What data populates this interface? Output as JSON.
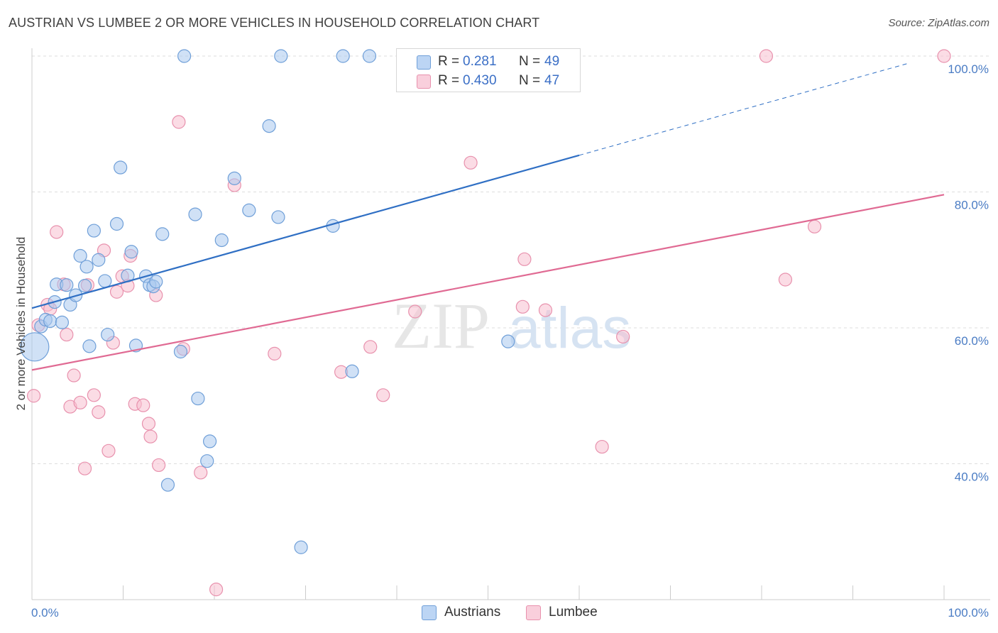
{
  "title": "AUSTRIAN VS LUMBEE 2 OR MORE VEHICLES IN HOUSEHOLD CORRELATION CHART",
  "source": "Source: ZipAtlas.com",
  "watermark": {
    "zip": "ZIP",
    "atlas": "atlas"
  },
  "legend": {
    "rows": [
      {
        "r_label": "R =",
        "r_value": "0.281",
        "n_label": "N =",
        "n_value": "49"
      },
      {
        "r_label": "R =",
        "r_value": "0.430",
        "n_label": "N =",
        "n_value": "47"
      }
    ]
  },
  "bottom_legend": {
    "austrians": "Austrians",
    "lumbee": "Lumbee"
  },
  "colors": {
    "austrians_fill": "#a9c8ef",
    "austrians_stroke": "#6f9fd8",
    "austrians_line": "#2f6fc4",
    "lumbee_fill": "#f7bfd0",
    "lumbee_stroke": "#e891ad",
    "lumbee_line": "#e06a93",
    "tick_label": "#4a7cc4",
    "grid": "#dddddd"
  },
  "chart_data": {
    "type": "scatter",
    "title": "AUSTRIAN VS LUMBEE 2 OR MORE VEHICLES IN HOUSEHOLD CORRELATION CHART",
    "xlabel": "",
    "ylabel": "2 or more Vehicles in Household",
    "xlim": [
      0,
      100
    ],
    "ylim": [
      20,
      100
    ],
    "x_ticks": [
      "0.0%",
      "100.0%"
    ],
    "y_ticks": [
      {
        "value": 40,
        "label": "40.0%"
      },
      {
        "value": 60,
        "label": "60.0%"
      },
      {
        "value": 80,
        "label": "80.0%"
      },
      {
        "value": 100,
        "label": "100.0%"
      }
    ],
    "grid": true,
    "legend_placement": "top-center",
    "series": [
      {
        "name": "Austrians",
        "r": 0.281,
        "n": 49,
        "trend": {
          "x0": 0,
          "y0": 62.9,
          "x1": 100,
          "y1": 100.4,
          "solid_until_x": 60
        },
        "points": [
          [
            0.3,
            57.2,
            20
          ],
          [
            1.0,
            60.2,
            9
          ],
          [
            1.5,
            61.2,
            9
          ],
          [
            2.0,
            61.0,
            9
          ],
          [
            2.5,
            63.8,
            9
          ],
          [
            2.7,
            66.4,
            9
          ],
          [
            3.3,
            60.8,
            9
          ],
          [
            3.8,
            66.3,
            9
          ],
          [
            4.2,
            63.4,
            9
          ],
          [
            4.8,
            64.8,
            9
          ],
          [
            5.3,
            70.6,
            9
          ],
          [
            5.8,
            66.2,
            9
          ],
          [
            6.0,
            69.0,
            9
          ],
          [
            6.3,
            57.3,
            9
          ],
          [
            6.8,
            74.3,
            9
          ],
          [
            7.3,
            70.0,
            9
          ],
          [
            8.0,
            66.9,
            9
          ],
          [
            8.3,
            59.0,
            9
          ],
          [
            9.3,
            75.3,
            9
          ],
          [
            9.7,
            83.6,
            9
          ],
          [
            10.9,
            71.2,
            9
          ],
          [
            10.5,
            67.7,
            9
          ],
          [
            11.4,
            57.4,
            9
          ],
          [
            12.5,
            67.6,
            9
          ],
          [
            12.9,
            66.3,
            9
          ],
          [
            13.3,
            66.1,
            9
          ],
          [
            13.6,
            66.8,
            9
          ],
          [
            14.3,
            73.8,
            9
          ],
          [
            14.9,
            36.9,
            9
          ],
          [
            16.3,
            56.5,
            9
          ],
          [
            16.7,
            100.0,
            9
          ],
          [
            17.9,
            76.7,
            9
          ],
          [
            18.2,
            49.6,
            9
          ],
          [
            19.2,
            40.4,
            9
          ],
          [
            19.5,
            43.3,
            9
          ],
          [
            20.8,
            72.9,
            9
          ],
          [
            22.2,
            82.0,
            9
          ],
          [
            23.8,
            77.3,
            9
          ],
          [
            26.0,
            89.7,
            9
          ],
          [
            27.0,
            76.3,
            9
          ],
          [
            27.3,
            100.0,
            9
          ],
          [
            29.5,
            27.7,
            9
          ],
          [
            33.0,
            75.0,
            9
          ],
          [
            34.1,
            100.0,
            9
          ],
          [
            35.1,
            53.6,
            9
          ],
          [
            37.0,
            100.0,
            9
          ],
          [
            41.5,
            100.0,
            9
          ],
          [
            52.2,
            58.0,
            9
          ],
          [
            58.0,
            100.0,
            9
          ]
        ]
      },
      {
        "name": "Lumbee",
        "r": 0.43,
        "n": 47,
        "trend": {
          "x0": 0,
          "y0": 53.8,
          "x1": 100,
          "y1": 79.6,
          "solid_until_x": 100
        },
        "points": [
          [
            0.2,
            50.0,
            9
          ],
          [
            0.7,
            60.4,
            9
          ],
          [
            1.7,
            63.4,
            9
          ],
          [
            2.0,
            62.8,
            9
          ],
          [
            2.7,
            74.1,
            9
          ],
          [
            3.5,
            66.4,
            9
          ],
          [
            3.8,
            59.0,
            9
          ],
          [
            4.2,
            48.4,
            9
          ],
          [
            4.6,
            53.0,
            9
          ],
          [
            5.3,
            49.0,
            9
          ],
          [
            5.8,
            39.3,
            9
          ],
          [
            6.1,
            66.3,
            9
          ],
          [
            6.8,
            50.1,
            9
          ],
          [
            7.3,
            47.6,
            9
          ],
          [
            7.9,
            71.4,
            9
          ],
          [
            8.4,
            41.9,
            9
          ],
          [
            8.9,
            57.8,
            9
          ],
          [
            9.3,
            65.3,
            9
          ],
          [
            9.9,
            67.6,
            9
          ],
          [
            10.5,
            66.2,
            9
          ],
          [
            10.8,
            70.6,
            9
          ],
          [
            11.3,
            48.8,
            9
          ],
          [
            12.2,
            48.6,
            9
          ],
          [
            12.8,
            45.9,
            9
          ],
          [
            13.0,
            44.0,
            9
          ],
          [
            13.6,
            64.8,
            9
          ],
          [
            13.9,
            39.8,
            9
          ],
          [
            16.1,
            90.3,
            9
          ],
          [
            16.6,
            56.9,
            9
          ],
          [
            18.5,
            38.7,
            9
          ],
          [
            20.2,
            21.5,
            9
          ],
          [
            22.2,
            81.0,
            9
          ],
          [
            26.6,
            56.2,
            9
          ],
          [
            33.9,
            53.5,
            9
          ],
          [
            37.1,
            57.2,
            9
          ],
          [
            38.5,
            50.1,
            9
          ],
          [
            42.0,
            62.4,
            9
          ],
          [
            48.1,
            84.3,
            9
          ],
          [
            54.0,
            70.1,
            9
          ],
          [
            53.8,
            63.1,
            9
          ],
          [
            56.3,
            62.6,
            9
          ],
          [
            62.5,
            42.5,
            9
          ],
          [
            64.8,
            58.7,
            9
          ],
          [
            80.5,
            100.0,
            9
          ],
          [
            82.6,
            67.1,
            9
          ],
          [
            85.8,
            74.9,
            9
          ],
          [
            100.0,
            100.0,
            9
          ]
        ]
      }
    ]
  }
}
